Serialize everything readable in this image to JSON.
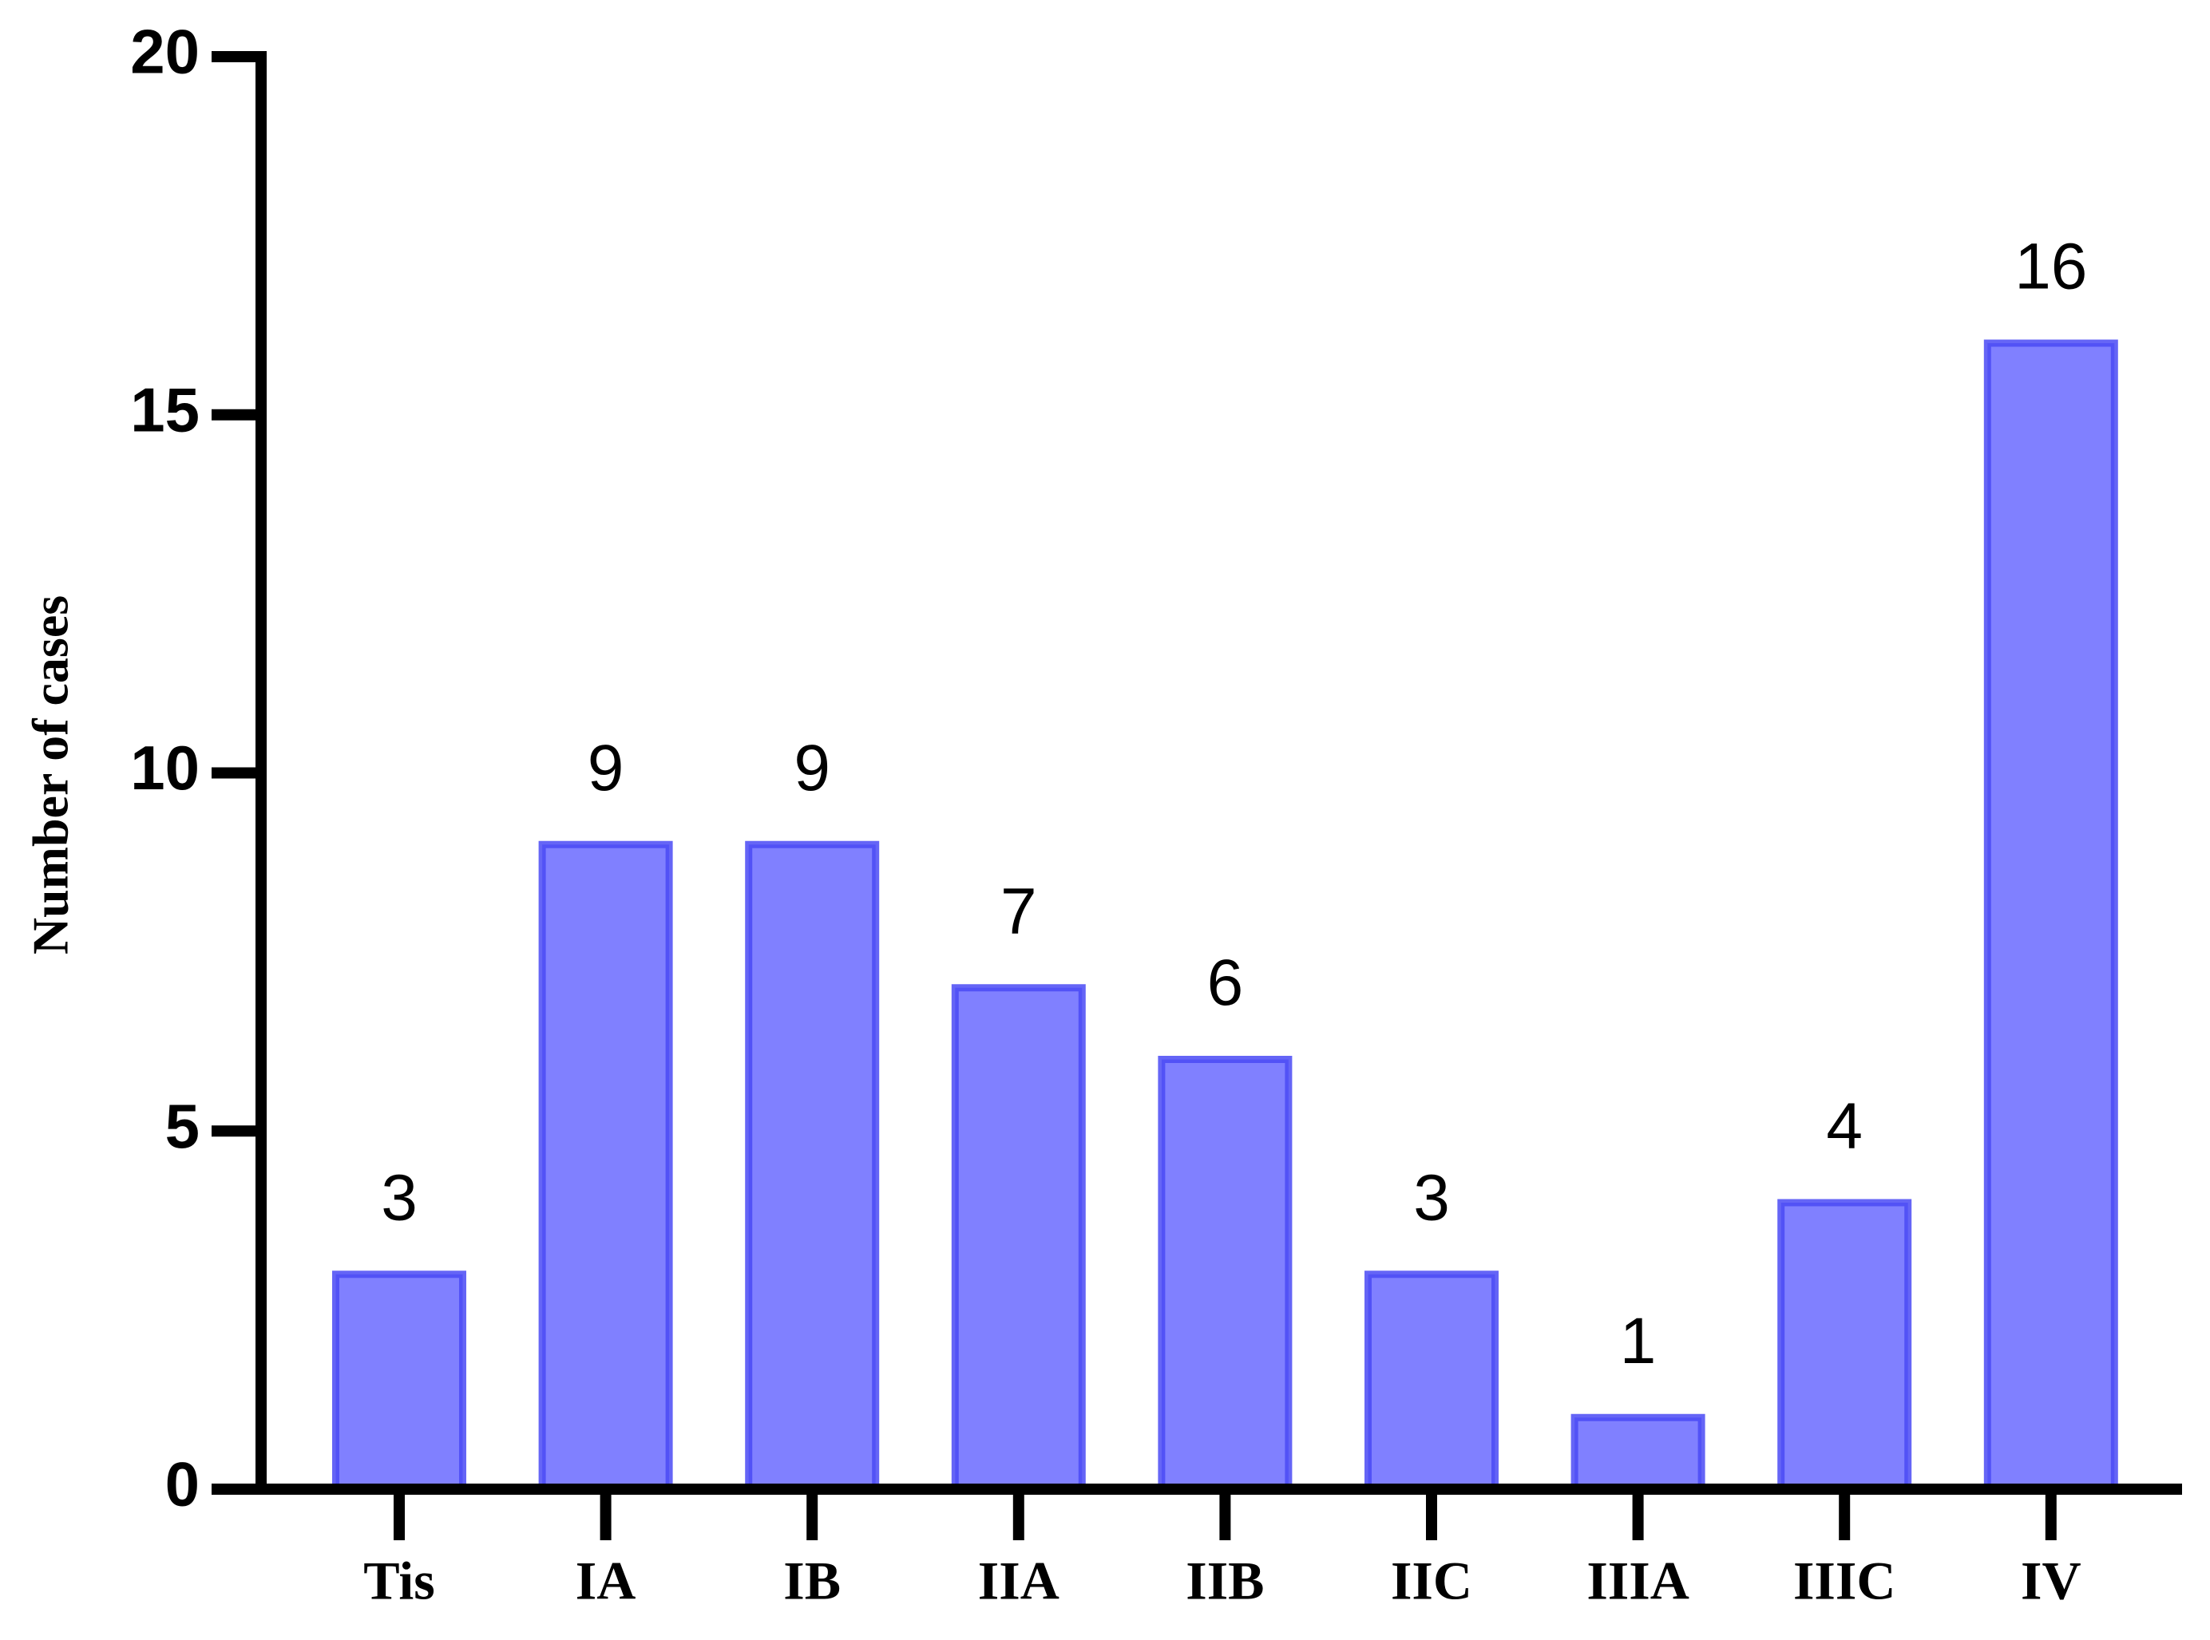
{
  "chart_data": {
    "type": "bar",
    "y_label": "Number of cases",
    "categories": [
      "Tis",
      "IA",
      "IB",
      "IIA",
      "IIB",
      "IIC",
      "IIIA",
      "IIIC",
      "IV"
    ],
    "values": [
      3,
      9,
      9,
      7,
      6,
      3,
      1,
      4,
      16
    ],
    "color": "#8080ff",
    "ylim": [
      0,
      20
    ],
    "yticks": [
      0,
      5,
      10,
      15,
      20
    ]
  }
}
